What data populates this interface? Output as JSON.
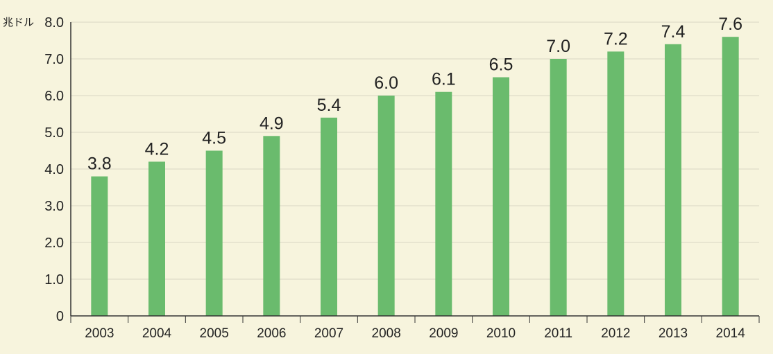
{
  "colors": {
    "background": "#f7f4dd",
    "bar": "#6abb6d",
    "axis": "#333333",
    "grid": "#d8d6c4"
  },
  "chart_data": {
    "type": "bar",
    "title": "",
    "xlabel": "",
    "ylabel": "兆ドル",
    "categories": [
      "2003",
      "2004",
      "2005",
      "2006",
      "2007",
      "2008",
      "2009",
      "2010",
      "2011",
      "2012",
      "2013",
      "2014"
    ],
    "values": [
      3.8,
      4.2,
      4.5,
      4.9,
      5.4,
      6.0,
      6.1,
      6.5,
      7.0,
      7.2,
      7.4,
      7.6
    ],
    "data_labels": [
      "3.8",
      "4.2",
      "4.5",
      "4.9",
      "5.4",
      "6.0",
      "6.1",
      "6.5",
      "7.0",
      "7.2",
      "7.4",
      "7.6"
    ],
    "yticks": [
      0,
      1.0,
      2.0,
      3.0,
      4.0,
      5.0,
      6.0,
      7.0,
      8.0
    ],
    "ytick_labels": [
      "0",
      "1.0",
      "2.0",
      "3.0",
      "4.0",
      "5.0",
      "6.0",
      "7.0",
      "8.0"
    ],
    "ylim": [
      0,
      8
    ],
    "grid": true,
    "legend": "none"
  }
}
